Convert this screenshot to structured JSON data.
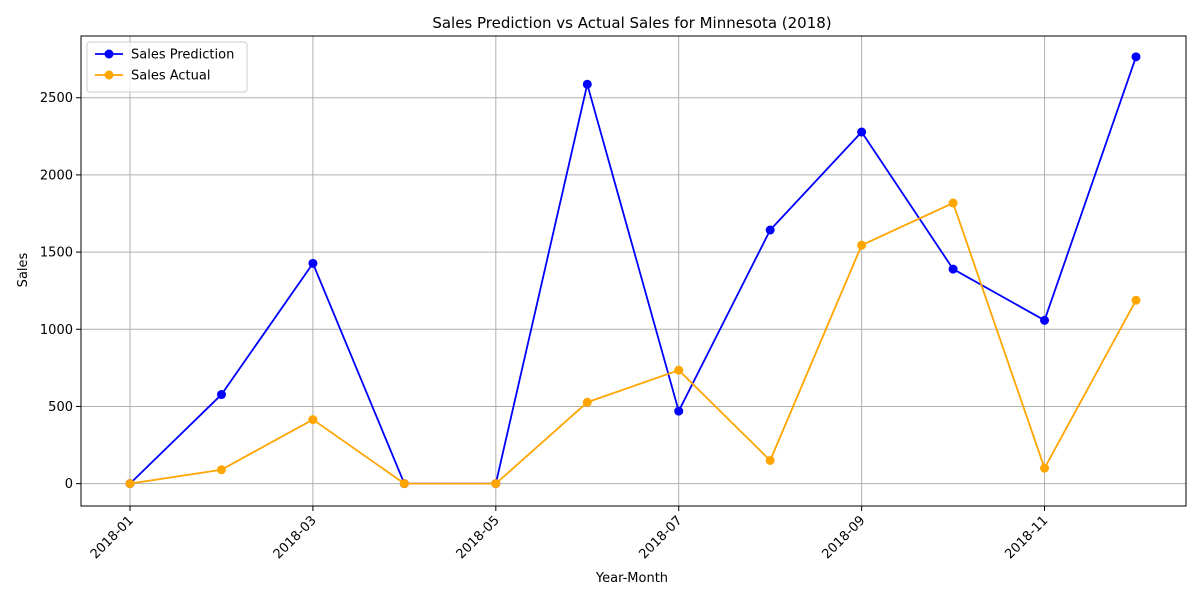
{
  "chart_data": {
    "type": "line",
    "title": "Sales Prediction vs Actual Sales for Minnesota (2018)",
    "xlabel": "Year-Month",
    "ylabel": "Sales",
    "x": [
      "2018-01",
      "2018-02",
      "2018-03",
      "2018-04",
      "2018-05",
      "2018-06",
      "2018-07",
      "2018-08",
      "2018-09",
      "2018-10",
      "2018-11",
      "2018-12"
    ],
    "x_tick_labels": [
      "2018-01",
      "2018-03",
      "2018-05",
      "2018-07",
      "2018-09",
      "2018-11"
    ],
    "y_ticks": [
      0,
      500,
      1000,
      1500,
      2000,
      2500
    ],
    "ylim": [
      -145,
      2900
    ],
    "grid": true,
    "legend_position": "top-left",
    "series": [
      {
        "name": "Sales Prediction",
        "color": "#0000ff",
        "values": [
          0,
          577,
          1427,
          0,
          0,
          2587,
          470,
          1643,
          2278,
          1390,
          1058,
          2765
        ]
      },
      {
        "name": "Sales Actual",
        "color": "#ffa500",
        "values": [
          0,
          90,
          415,
          0,
          0,
          527,
          735,
          150,
          1545,
          1818,
          100,
          1188
        ]
      }
    ]
  }
}
